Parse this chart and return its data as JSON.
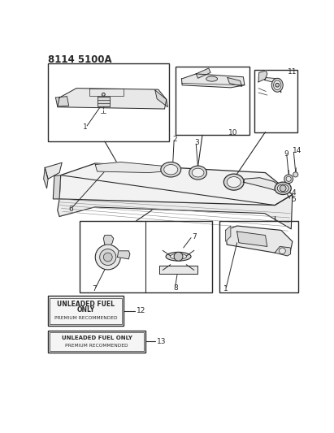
{
  "title": "8114 5100A",
  "bg_color": "#ffffff",
  "lc": "#2a2a2a",
  "lc_light": "#888888",
  "fill_light": "#e8e8e8",
  "fill_mid": "#d8d8d8",
  "fill_dark": "#c8c8c8",
  "label12_line1": "UNLEADED FUEL",
  "label12_line2": "ONLY",
  "label12_line3": "PREMIUM RECOMMENDED",
  "label13_line1": "UNLEADED FUEL ONLY",
  "label13_line2": "PREMIUM RECOMMENDED"
}
